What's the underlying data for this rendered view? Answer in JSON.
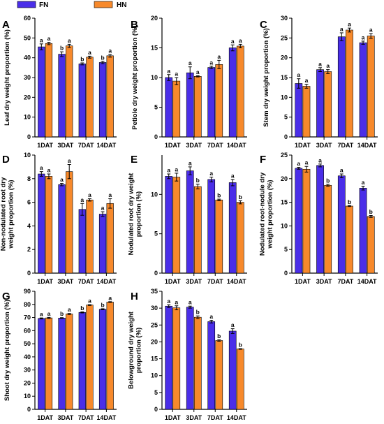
{
  "legend": {
    "items": [
      {
        "label": "FN",
        "color": "#4a2ee8"
      },
      {
        "label": "HN",
        "color": "#f7892b"
      }
    ]
  },
  "chart_data": [
    {
      "panel": "A",
      "type": "bar",
      "categories": [
        "1DAT",
        "3DAT",
        "7DAT",
        "14DAT"
      ],
      "ylabel": "Leaf dry weight proportion (%)",
      "ylim": [
        0,
        60
      ],
      "yticks": [
        0,
        10,
        20,
        30,
        40,
        50,
        60
      ],
      "series": [
        {
          "name": "FN",
          "values": [
            45.5,
            41.8,
            36.9,
            37.6
          ],
          "errors": [
            1.5,
            1.2,
            0.5,
            0.6
          ],
          "sig": [
            "a",
            "b",
            "b",
            "b"
          ]
        },
        {
          "name": "HN",
          "values": [
            47.2,
            46.0,
            40.3,
            41.0
          ],
          "errors": [
            0.6,
            0.8,
            0.5,
            0.7
          ],
          "sig": [
            "a",
            "a",
            "a",
            "a"
          ]
        }
      ]
    },
    {
      "panel": "B",
      "type": "bar",
      "categories": [
        "1DAT",
        "3DAT",
        "7DAT",
        "14DAT"
      ],
      "ylabel": "Petiole dry weight proportion (%)",
      "ylim": [
        0,
        20
      ],
      "yticks": [
        0,
        5,
        10,
        15,
        20
      ],
      "series": [
        {
          "name": "FN",
          "values": [
            10.0,
            10.8,
            11.7,
            15.0
          ],
          "errors": [
            0.5,
            1.0,
            0.2,
            0.5
          ],
          "sig": [
            "a",
            "a",
            "a",
            "a"
          ]
        },
        {
          "name": "HN",
          "values": [
            9.4,
            10.2,
            12.2,
            15.3
          ],
          "errors": [
            0.6,
            0.1,
            0.7,
            0.3
          ],
          "sig": [
            "a",
            "a",
            "a",
            "a"
          ]
        }
      ]
    },
    {
      "panel": "C",
      "type": "bar",
      "categories": [
        "1DAT",
        "3DAT",
        "7DAT",
        "14DAT"
      ],
      "ylabel": "Stem dry weight proportion (%)",
      "ylim": [
        0,
        30
      ],
      "yticks": [
        0,
        5,
        10,
        15,
        20,
        25,
        30
      ],
      "series": [
        {
          "name": "FN",
          "values": [
            13.5,
            17.0,
            25.3,
            23.8
          ],
          "errors": [
            1.2,
            0.5,
            1.0,
            0.4
          ],
          "sig": [
            "a",
            "a",
            "a",
            "a"
          ]
        },
        {
          "name": "HN",
          "values": [
            12.8,
            16.5,
            27.0,
            25.5
          ],
          "errors": [
            0.5,
            0.5,
            0.5,
            0.6
          ],
          "sig": [
            "a",
            "a",
            "a",
            "a"
          ]
        }
      ]
    },
    {
      "panel": "D",
      "type": "bar",
      "categories": [
        "1DAT",
        "3DAT",
        "7DAT",
        "14DAT"
      ],
      "ylabel": "Non-nodulated root dry weight proportion (%)",
      "ylim": [
        0,
        10
      ],
      "yticks": [
        0,
        2,
        4,
        6,
        8,
        10
      ],
      "series": [
        {
          "name": "FN",
          "values": [
            8.4,
            7.5,
            5.4,
            5.0
          ],
          "errors": [
            0.2,
            0.1,
            0.5,
            0.2
          ],
          "sig": [
            "a",
            "a",
            "a",
            "a"
          ]
        },
        {
          "name": "HN",
          "values": [
            8.2,
            8.6,
            6.2,
            5.9
          ],
          "errors": [
            0.2,
            0.6,
            0.1,
            0.4
          ],
          "sig": [
            "a",
            "a",
            "a",
            "a"
          ]
        }
      ]
    },
    {
      "panel": "E",
      "type": "bar",
      "categories": [
        "1DAT",
        "3DAT",
        "7DAT",
        "14DAT"
      ],
      "ylabel": "Nodulated root dry weight proportion (%)",
      "ylim": [
        0,
        15
      ],
      "yticks": [
        0,
        5,
        10
      ],
      "series": [
        {
          "name": "FN",
          "values": [
            12.3,
            13.0,
            11.9,
            11.5
          ],
          "errors": [
            0.3,
            0.5,
            0.3,
            0.4
          ],
          "sig": [
            "a",
            "a",
            "a",
            "a"
          ]
        },
        {
          "name": "HN",
          "values": [
            12.2,
            11.0,
            9.3,
            9.0
          ],
          "errors": [
            0.5,
            0.3,
            0.1,
            0.2
          ],
          "sig": [
            "a",
            "b",
            "b",
            "b"
          ]
        }
      ]
    },
    {
      "panel": "F",
      "type": "bar",
      "categories": [
        "1DAT",
        "3DAT",
        "7DAT",
        "14DAT"
      ],
      "ylabel": "Nodulated root-nodule dry weight proportion (%)",
      "ylim": [
        0,
        25
      ],
      "yticks": [
        0,
        5,
        10,
        15,
        20,
        25
      ],
      "series": [
        {
          "name": "FN",
          "values": [
            22.2,
            22.8,
            20.6,
            18.0
          ],
          "errors": [
            0.2,
            0.3,
            0.4,
            0.4
          ],
          "sig": [
            "a",
            "a",
            "a",
            "a"
          ]
        },
        {
          "name": "HN",
          "values": [
            22.0,
            18.6,
            14.2,
            12.0
          ],
          "errors": [
            0.6,
            0.2,
            0.1,
            0.2
          ],
          "sig": [
            "a",
            "b",
            "b",
            "b"
          ]
        }
      ]
    },
    {
      "panel": "G",
      "type": "bar",
      "categories": [
        "1DAT",
        "3DAT",
        "7DAT",
        "14DAT"
      ],
      "ylabel": "Shoot dry weight proportion (%)",
      "ylim": [
        0,
        90
      ],
      "yticks": [
        0,
        10,
        20,
        30,
        40,
        50,
        60,
        70,
        80,
        90
      ],
      "series": [
        {
          "name": "FN",
          "values": [
            69.3,
            69.6,
            73.9,
            76.3
          ],
          "errors": [
            0.4,
            0.3,
            0.4,
            0.4
          ],
          "sig": [
            "a",
            "b",
            "b",
            "b"
          ]
        },
        {
          "name": "HN",
          "values": [
            69.7,
            72.7,
            79.5,
            81.8
          ],
          "errors": [
            0.4,
            0.4,
            0.3,
            0.3
          ],
          "sig": [
            "a",
            "a",
            "a",
            "a"
          ]
        }
      ]
    },
    {
      "panel": "H",
      "type": "bar",
      "categories": [
        "1DAT",
        "3DAT",
        "7DAT",
        "14DAT"
      ],
      "ylabel": "Belowground dry weight proportion (%)",
      "ylim": [
        0,
        35
      ],
      "yticks": [
        0,
        5,
        10,
        15,
        20,
        25,
        30,
        35
      ],
      "series": [
        {
          "name": "FN",
          "values": [
            30.6,
            30.3,
            26.0,
            23.2
          ],
          "errors": [
            0.4,
            0.3,
            0.4,
            0.7
          ],
          "sig": [
            "a",
            "a",
            "a",
            "a"
          ]
        },
        {
          "name": "HN",
          "values": [
            30.1,
            27.3,
            20.4,
            17.9
          ],
          "errors": [
            0.6,
            0.4,
            0.2,
            0.1
          ],
          "sig": [
            "a",
            "b",
            "b",
            "b"
          ]
        }
      ]
    }
  ]
}
